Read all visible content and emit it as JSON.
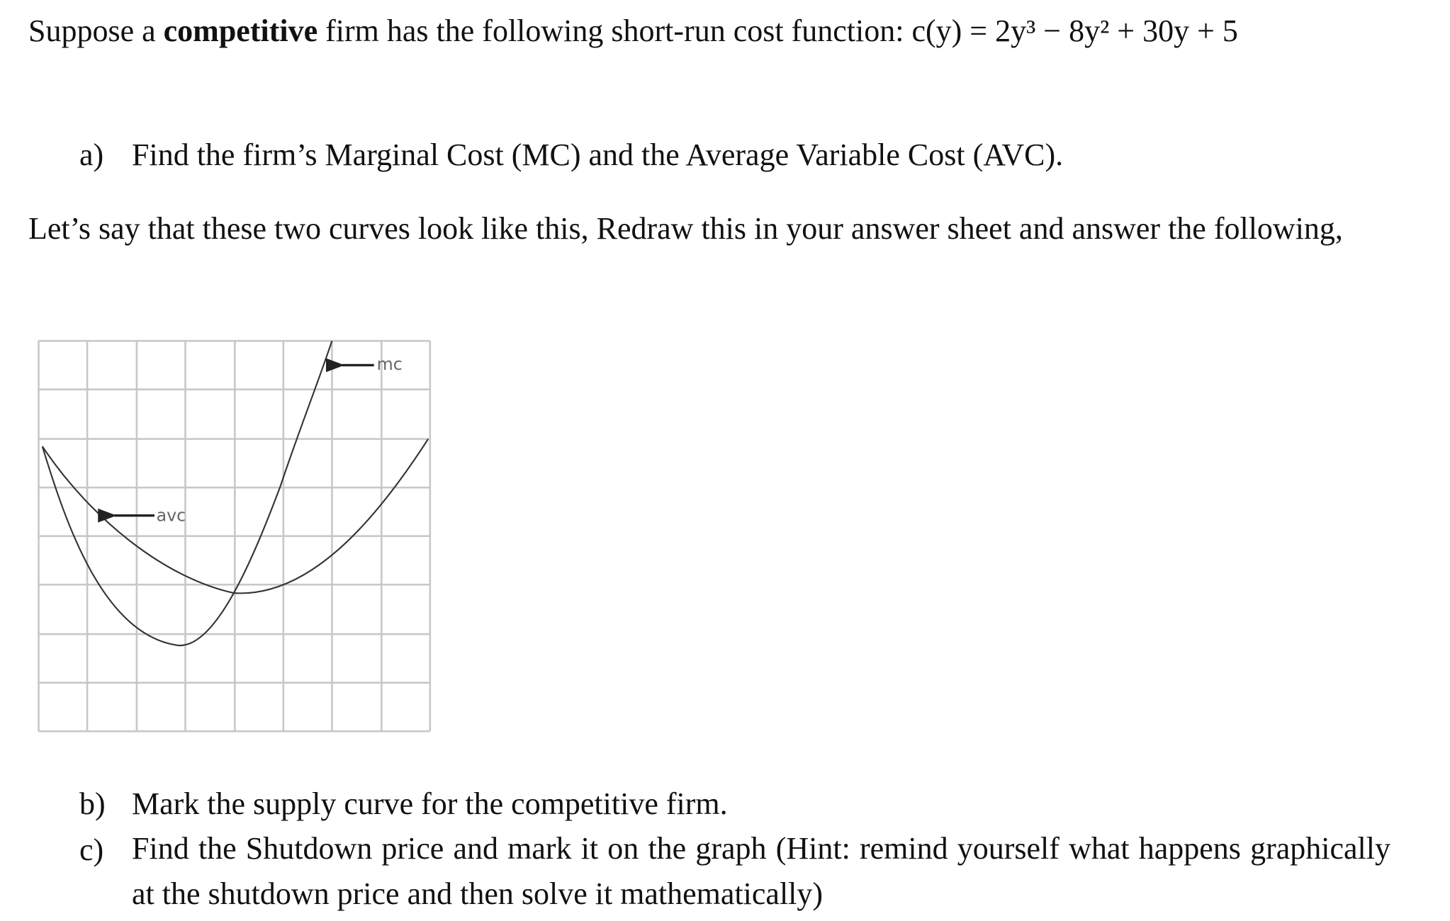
{
  "intro": {
    "before": "Suppose a",
    "bold": "competitive",
    "after": "firm has the following short-run cost function:",
    "formula": "c(y) = 2y³ − 8y² + 30y + 5"
  },
  "questions": [
    {
      "label": "a)",
      "text": "Find the firm’s Marginal Cost (MC) and the Average Variable Cost (AVC)."
    },
    {
      "label": "b)",
      "text": "Mark the supply curve for the competitive firm."
    },
    {
      "label": "c)",
      "text": "Find the Shutdown price and mark it on the graph (Hint: remind yourself what happens graphically at the shutdown price and then solve it mathematically)"
    }
  ],
  "transition": "Let’s say that these two curves look like this, Redraw this in your answer sheet and answer the following,",
  "figure": {
    "mc_label": "mc",
    "avc_label": "avc"
  }
}
